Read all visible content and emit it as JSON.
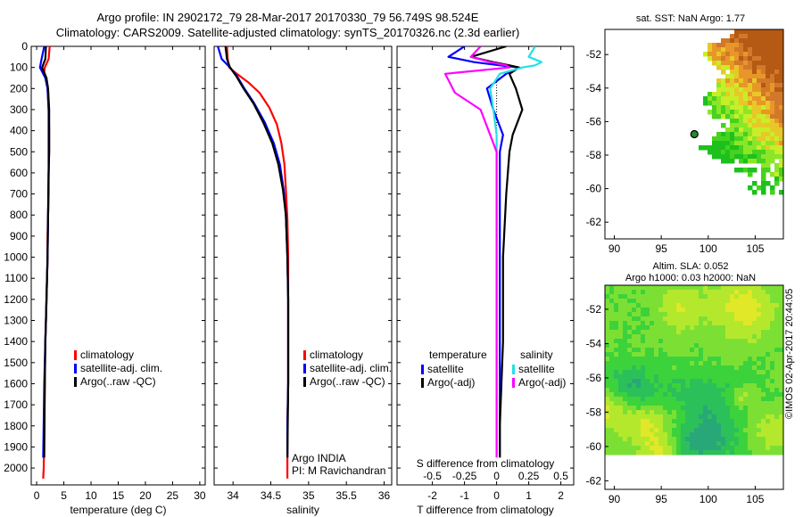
{
  "header": {
    "title_line1": "Argo profile: IN 2902172_79 28-Mar-2017 20170330_79 56.749S 98.524E",
    "title_line2": "Climatology: CARS2009. Satellite-adjusted climatology: synTS_20170326.nc (2.3d earlier)"
  },
  "map_sst": {
    "title": "sat. SST: NaN Argo: 1.77"
  },
  "map_sla": {
    "title_line1": "Altim. SLA: 0.052",
    "title_line2": "Argo h1000: 0.03 h2000: NaN"
  },
  "stamp": "©IMOS 02-Apr-2017 20:44:05",
  "argo_info": {
    "line1": "Argo INDIA",
    "line2": "PI: M Ravichandran"
  },
  "colors": {
    "climatology": "#ff0000",
    "satellite": "#0000ff",
    "argo": "#000000",
    "satellite_salinity": "#22e0e8",
    "argo_salinity": "#ff00ff",
    "axis": "#000000"
  },
  "chart_data": [
    {
      "type": "line",
      "xlabel": "temperature (deg C)",
      "ylabel": "",
      "xlim": [
        -1,
        31
      ],
      "ylim": [
        2080,
        0
      ],
      "xticks": [
        0,
        5,
        10,
        15,
        20,
        25,
        30
      ],
      "xtick_labels": [
        "0",
        "5",
        "10",
        "15",
        "20",
        "25",
        "30"
      ],
      "yticks": [
        0,
        100,
        200,
        300,
        400,
        500,
        600,
        700,
        800,
        900,
        1000,
        1100,
        1200,
        1300,
        1400,
        1500,
        1600,
        1700,
        1800,
        1900,
        2000
      ],
      "ytick_labels": [
        "0",
        "100",
        "200",
        "300",
        "400",
        "500",
        "600",
        "700",
        "800",
        "900",
        "1000",
        "1100",
        "1200",
        "1300",
        "1400",
        "1500",
        "1600",
        "1700",
        "1800",
        "1900",
        "2000"
      ],
      "legend": [
        "climatology",
        "satellite-adj. clim.",
        "Argo(..raw -QC)"
      ],
      "legend_position": "lower-middle",
      "series": [
        {
          "name": "climatology",
          "x": [
            2.4,
            2.2,
            1.5,
            1.4,
            1.7,
            2.0,
            2.2,
            2.3,
            2.3,
            2.2,
            2.2,
            2.1,
            2.0,
            2.0,
            1.9,
            1.8,
            1.7,
            1.6,
            1.5,
            1.4,
            1.3,
            1.2
          ],
          "y": [
            0,
            60,
            100,
            120,
            150,
            200,
            300,
            400,
            500,
            600,
            700,
            800,
            900,
            1000,
            1100,
            1200,
            1300,
            1400,
            1600,
            1800,
            2000,
            2050
          ]
        },
        {
          "name": "satellite-adj. clim.",
          "x": [
            1.4,
            0.9,
            0.6,
            1.0,
            1.6,
            2.0,
            2.2,
            2.2,
            2.2,
            2.2,
            2.1,
            2.0,
            1.9,
            1.8,
            1.7,
            1.6,
            1.4,
            1.2
          ],
          "y": [
            0,
            60,
            100,
            120,
            150,
            200,
            300,
            400,
            500,
            600,
            800,
            1000,
            1100,
            1200,
            1300,
            1400,
            1600,
            1950
          ]
        },
        {
          "name": "Argo(..raw -QC)",
          "x": [
            1.7,
            1.6,
            1.0,
            1.3,
            1.8,
            2.1,
            2.3,
            2.3,
            2.3,
            2.2,
            2.1,
            2.0,
            1.9,
            1.8,
            1.7,
            1.6,
            1.5,
            1.4
          ],
          "y": [
            0,
            60,
            100,
            120,
            150,
            200,
            300,
            400,
            500,
            600,
            800,
            1000,
            1100,
            1200,
            1300,
            1400,
            1600,
            1950
          ]
        }
      ]
    },
    {
      "type": "line",
      "xlabel": "salinity",
      "ylabel": "",
      "xlim": [
        33.75,
        36.1
      ],
      "ylim": [
        2080,
        0
      ],
      "xticks": [
        34,
        34.5,
        35,
        35.5,
        36
      ],
      "xtick_labels": [
        "34",
        "34.5",
        "35",
        "35.5",
        "36"
      ],
      "legend": [
        "climatology",
        "satellite-adj. clim.",
        "Argo(..raw -QC)"
      ],
      "legend_position": "lower-right",
      "series": [
        {
          "name": "climatology",
          "x": [
            33.92,
            33.93,
            33.95,
            34.05,
            34.2,
            34.35,
            34.48,
            34.58,
            34.64,
            34.68,
            34.7,
            34.72,
            34.73,
            34.73,
            34.73,
            34.73,
            34.72,
            34.72
          ],
          "y": [
            0,
            60,
            100,
            130,
            170,
            220,
            290,
            370,
            460,
            560,
            680,
            820,
            1000,
            1200,
            1400,
            1600,
            1800,
            2050
          ]
        },
        {
          "name": "satellite-adj. clim.",
          "x": [
            33.8,
            33.85,
            33.96,
            34.05,
            34.15,
            34.28,
            34.42,
            34.54,
            34.62,
            34.67,
            34.7,
            34.72,
            34.73,
            34.73,
            34.73,
            34.72,
            34.72
          ],
          "y": [
            0,
            60,
            100,
            140,
            200,
            270,
            360,
            460,
            560,
            680,
            800,
            1000,
            1200,
            1400,
            1600,
            1800,
            1950
          ]
        },
        {
          "name": "Argo(..raw -QC)",
          "x": [
            33.9,
            33.92,
            33.96,
            34.04,
            34.14,
            34.27,
            34.4,
            34.52,
            34.6,
            34.66,
            34.7,
            34.72,
            34.73,
            34.73,
            34.73,
            34.72
          ],
          "y": [
            0,
            60,
            100,
            140,
            200,
            270,
            360,
            460,
            560,
            680,
            800,
            1000,
            1200,
            1400,
            1600,
            1950
          ]
        }
      ]
    },
    {
      "type": "line",
      "xlabel": "T difference from climatology",
      "x2label": "S difference from climatology",
      "ylabel": "",
      "xlim": [
        -3.1,
        2.4
      ],
      "ylim": [
        2080,
        0
      ],
      "xticks": [
        -2,
        -1,
        0,
        1,
        2
      ],
      "xtick_labels": [
        "-2",
        "-1",
        "0",
        "1",
        "2"
      ],
      "x2_tick_labels": [
        "-0.5",
        "-0.25",
        "0",
        "0.25",
        "0.5"
      ],
      "legend_headers": [
        "temperature",
        "salinity"
      ],
      "legend": [
        "satellite",
        "Argo(-adj)",
        "satellite",
        "Argo(-adj)"
      ],
      "legend_position": "lower-middle",
      "series": [
        {
          "name": "temperature satellite",
          "x": [
            -1.0,
            -1.5,
            -0.7,
            0.1,
            0.7,
            0.3,
            -0.3,
            -0.1,
            0.2,
            0.1,
            0.1,
            0.1,
            0.1,
            0.1,
            0.1
          ],
          "y": [
            0,
            50,
            75,
            90,
            100,
            130,
            200,
            300,
            420,
            500,
            700,
            1000,
            1400,
            1800,
            1950
          ]
        },
        {
          "name": "temperature Argo(-adj)",
          "x": [
            0.3,
            -0.8,
            -0.1,
            0.4,
            0.7,
            0.4,
            0.6,
            0.8,
            0.5,
            0.4,
            0.3,
            0.2,
            0.2,
            0.1,
            0.1
          ],
          "y": [
            0,
            50,
            75,
            90,
            100,
            130,
            200,
            300,
            420,
            500,
            700,
            1000,
            1400,
            1800,
            1950
          ]
        },
        {
          "name": "salinity satellite",
          "x": [
            1.2,
            1.0,
            1.4,
            1.2,
            0.8,
            0.1,
            -0.2,
            -0.1,
            0.0,
            0.0,
            0.0,
            0.0,
            0.0,
            0.0,
            0.0
          ],
          "y": [
            0,
            50,
            75,
            90,
            100,
            130,
            200,
            300,
            420,
            500,
            700,
            1000,
            1400,
            1800,
            1950
          ]
        },
        {
          "name": "salinity Argo(-adj)",
          "x": [
            -0.5,
            -0.8,
            -0.2,
            0.3,
            0.4,
            -1.6,
            -1.3,
            -0.5,
            -0.2,
            0.0,
            0.0,
            0.0,
            0.0,
            0.0,
            0.0
          ],
          "y": [
            0,
            50,
            75,
            90,
            100,
            130,
            220,
            300,
            420,
            500,
            700,
            1000,
            1400,
            1800,
            1950
          ]
        }
      ]
    },
    {
      "type": "heatmap",
      "title": "sat. SST: NaN Argo: 1.77",
      "xlim": [
        89,
        108
      ],
      "ylim": [
        -63,
        -50.5
      ],
      "xticks": [
        90,
        95,
        100,
        105
      ],
      "xtick_labels": [
        "90",
        "95",
        "100",
        "105"
      ],
      "yticks": [
        -52,
        -54,
        -56,
        -58,
        -60,
        -62
      ],
      "ytick_labels": [
        "-52",
        "-54",
        "-56",
        "-58",
        "-60",
        "-62"
      ],
      "argo_position": [
        98.524,
        -56.749
      ]
    },
    {
      "type": "heatmap",
      "title": "Altim. SLA: 0.052",
      "xlim": [
        89,
        108
      ],
      "ylim": [
        -62.5,
        -50.6
      ],
      "xticks": [
        90,
        95,
        100,
        105
      ],
      "xtick_labels": [
        "90",
        "95",
        "100",
        "105"
      ],
      "yticks": [
        -52,
        -54,
        -56,
        -58,
        -60,
        -62
      ],
      "ytick_labels": [
        "-52",
        "-54",
        "-56",
        "-58",
        "-60",
        "-62"
      ]
    }
  ]
}
